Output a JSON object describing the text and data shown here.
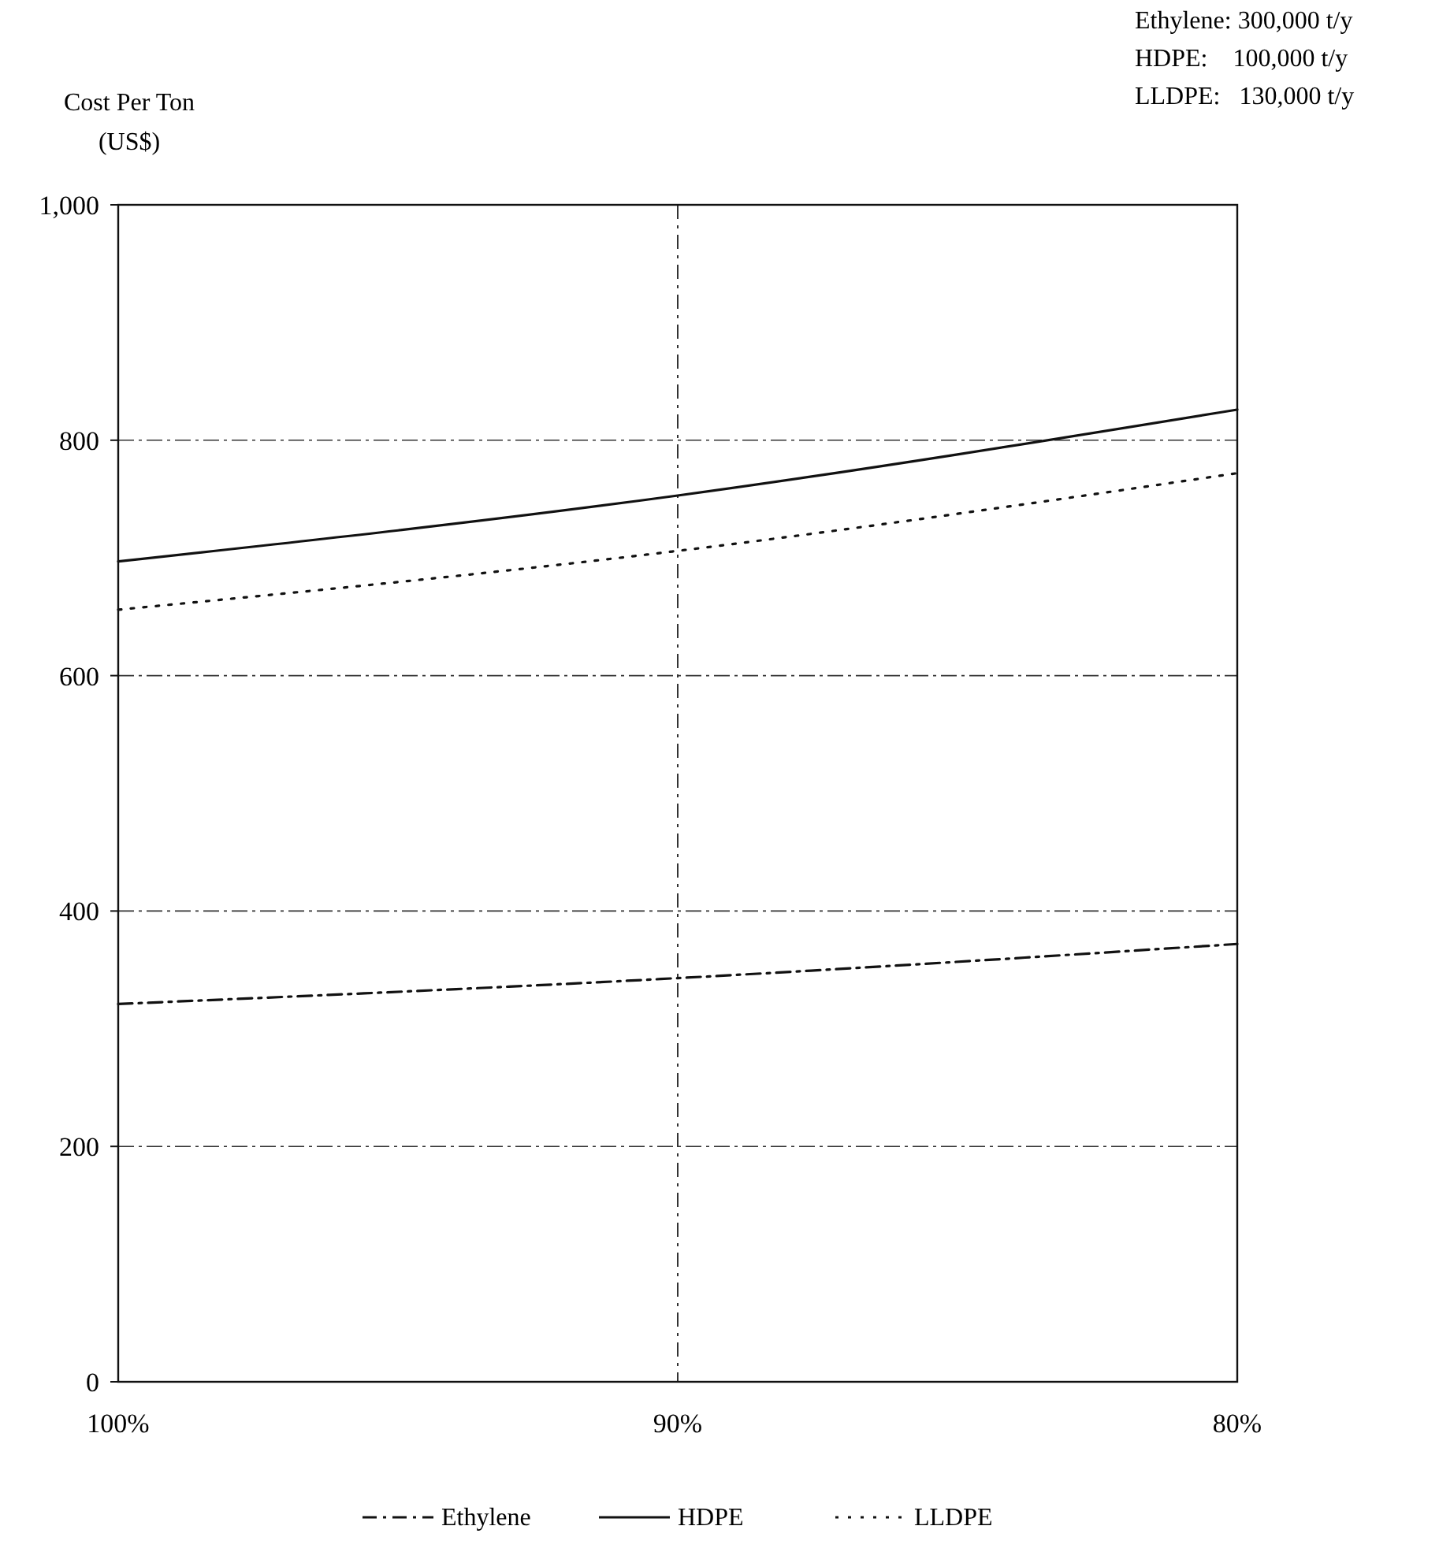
{
  "chart_data": {
    "type": "line",
    "ylabel": "Cost Per Ton\n(US$)",
    "categories": [
      "100%",
      "90%",
      "80%"
    ],
    "series": [
      {
        "name": "Ethylene",
        "color": "#111111",
        "line_style": "dashed",
        "values": [
          321,
          343,
          372
        ]
      },
      {
        "name": "HDPE",
        "color": "#111111",
        "line_style": "solid",
        "values": [
          697,
          753,
          826
        ]
      },
      {
        "name": "LLDPE",
        "color": "#111111",
        "line_style": "dotted",
        "values": [
          656,
          706,
          772
        ]
      }
    ],
    "ylim": [
      0,
      1000
    ],
    "yticks": [
      0,
      200,
      400,
      600,
      800,
      {
        "value": 1000,
        "label": "1,000"
      }
    ],
    "grid": "y",
    "ref_lines": [
      {
        "axis": "x",
        "value": "90%",
        "line_style": "dashed"
      }
    ],
    "legend": "bottom",
    "marker": "none",
    "annotations": [
      "Ethylene: 300,000 t/y",
      "HDPE:    100,000 t/y",
      "LLDPE:   130,000 t/y"
    ]
  }
}
